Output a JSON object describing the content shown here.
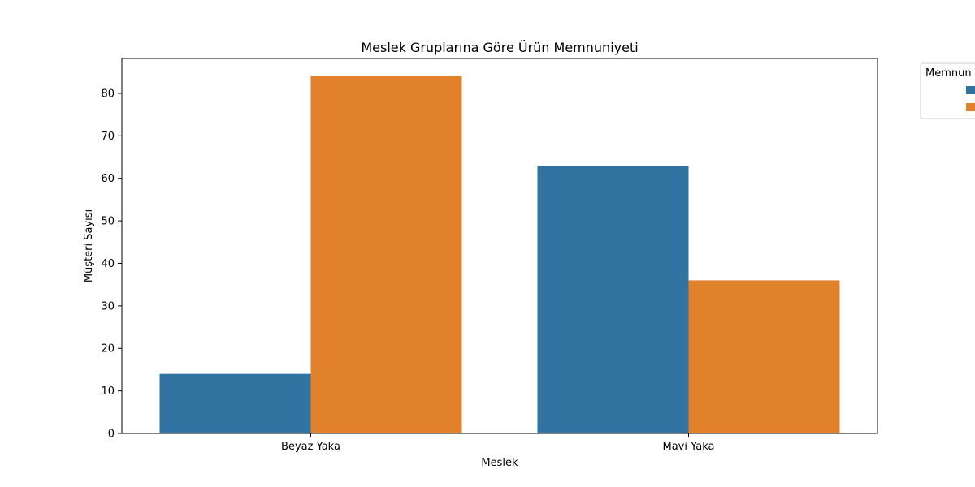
{
  "chart_data": {
    "type": "bar",
    "title": "Meslek Gruplarına Göre Ürün Memnuniyeti",
    "xlabel": "Meslek",
    "ylabel": "Müşteri Sayısı",
    "categories": [
      "Beyaz Yaka",
      "Mavi Yaka"
    ],
    "series": [
      {
        "values": [
          14,
          63
        ],
        "color": "#3274a1"
      },
      {
        "values": [
          84,
          36
        ],
        "color": "#e1812c"
      }
    ],
    "ylim": [
      0,
      88.2
    ],
    "yticks": [
      0,
      10,
      20,
      30,
      40,
      50,
      60,
      70,
      80
    ],
    "legend": {
      "title": "Memnun",
      "placement": "outside-top-right"
    },
    "grid": false
  }
}
